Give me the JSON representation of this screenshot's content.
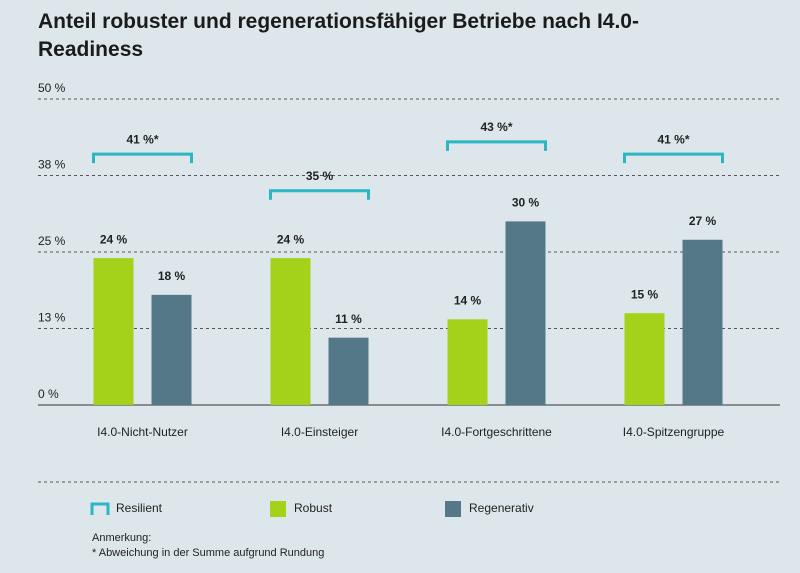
{
  "chart_data": {
    "type": "bar",
    "title": "Anteil robuster und regenerationsfähiger Betriebe nach I4.0-Readiness",
    "categories": [
      "I4.0-Nicht-Nutzer",
      "I4.0-Einsteiger",
      "I4.0-Fortgeschrittene",
      "I4.0-Spitzengruppe"
    ],
    "series": [
      {
        "name": "Resilient",
        "color": "#2ab7c1",
        "mark": "bracket",
        "values": [
          41,
          35,
          43,
          41
        ],
        "value_labels": [
          "41 %*",
          "35 %",
          "43 %*",
          "41 %*"
        ]
      },
      {
        "name": "Robust",
        "color": "#a4d21a",
        "mark": "bar",
        "values": [
          24,
          24,
          14,
          15
        ],
        "value_labels": [
          "24 %",
          "24 %",
          "14 %",
          "15 %"
        ]
      },
      {
        "name": "Regenerativ",
        "color": "#557888",
        "mark": "bar",
        "values": [
          18,
          11,
          30,
          27
        ],
        "value_labels": [
          "18 %",
          "11 %",
          "30 %",
          "27 %"
        ]
      }
    ],
    "ylim": [
      0,
      50
    ],
    "yticks": [
      {
        "value": 0,
        "label": "0 %"
      },
      {
        "value": 12.5,
        "label": "13 %"
      },
      {
        "value": 25,
        "label": "25 %"
      },
      {
        "value": 37.5,
        "label": "38 %"
      },
      {
        "value": 50,
        "label": "50 %"
      }
    ],
    "grid": true,
    "note": {
      "heading": "Anmerkung:",
      "text": "* Abweichung in der Summe aufgrund Rundung"
    }
  }
}
